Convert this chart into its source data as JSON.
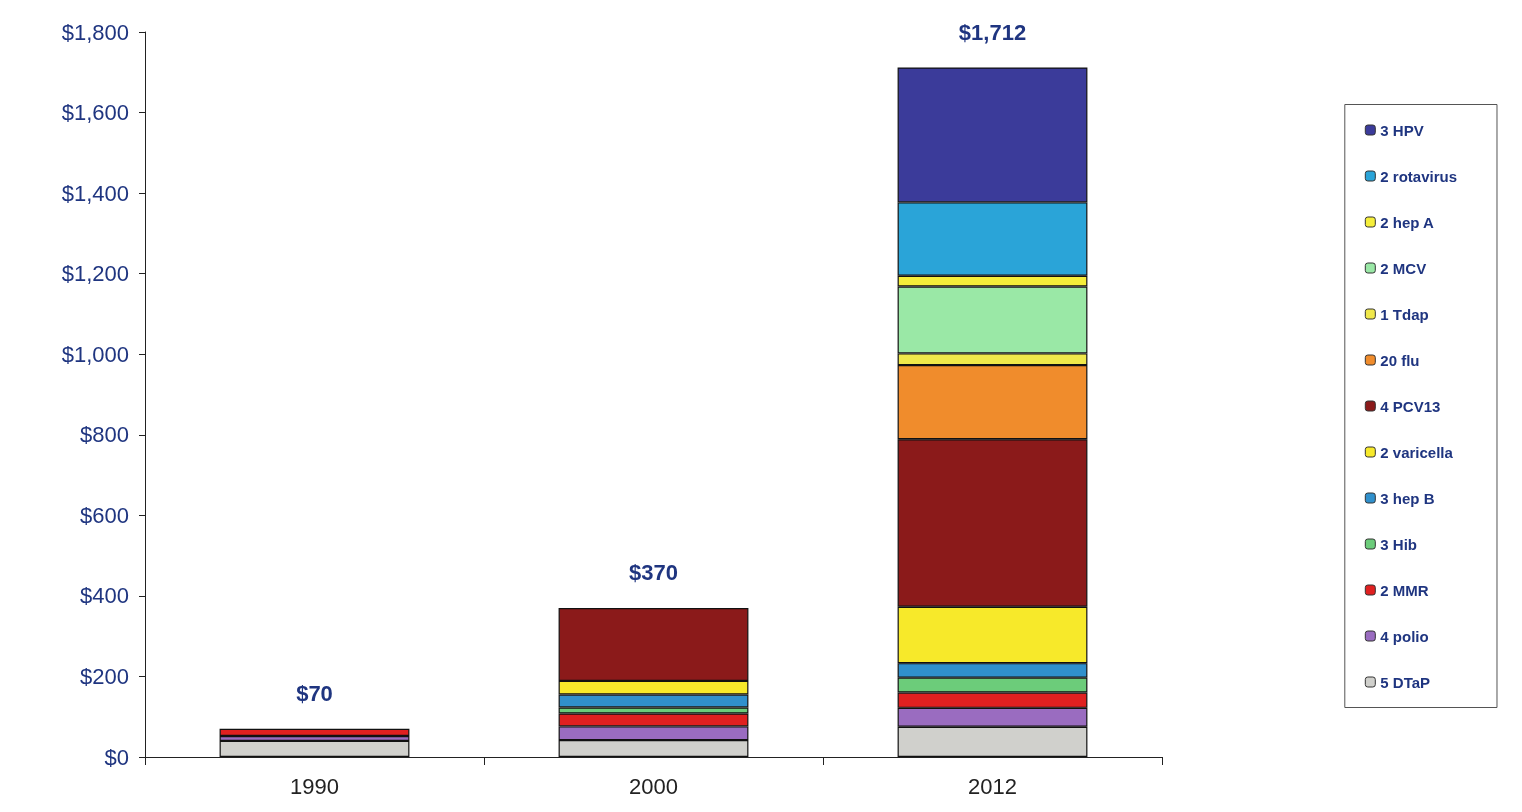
{
  "chart_data": {
    "type": "bar",
    "stacked": true,
    "categories": [
      "1990",
      "2000",
      "2012"
    ],
    "series": [
      {
        "name": "5 DTaP",
        "color": "#d0d0cc",
        "values": [
          40,
          42,
          75
        ]
      },
      {
        "name": "4 polio",
        "color": "#9a6cc0",
        "values": [
          12,
          34,
          47
        ]
      },
      {
        "name": "2 MMR",
        "color": "#e02020",
        "values": [
          18,
          32,
          38
        ]
      },
      {
        "name": "3 Hib",
        "color": "#6ccc7a",
        "values": [
          null,
          15,
          37
        ]
      },
      {
        "name": "3 hep B",
        "color": "#3090cc",
        "values": [
          null,
          32,
          36
        ]
      },
      {
        "name": "2 varicella",
        "color": "#f7e92a",
        "values": [
          null,
          34,
          140
        ]
      },
      {
        "name": "4 PCV13",
        "color": "#8b1a1a",
        "values": [
          null,
          181,
          416
        ]
      },
      {
        "name": "20 flu",
        "color": "#f08c2c",
        "values": [
          null,
          null,
          184
        ]
      },
      {
        "name": "1 Tdap",
        "color": "#f0e84a",
        "values": [
          null,
          null,
          29
        ]
      },
      {
        "name": "2 MCV",
        "color": "#9ae8a6",
        "values": [
          null,
          null,
          166
        ]
      },
      {
        "name": "2 hep A",
        "color": "#f5ee3a",
        "values": [
          null,
          null,
          27
        ]
      },
      {
        "name": "2 rotavirus",
        "color": "#2aa4d8",
        "values": [
          null,
          null,
          182
        ]
      },
      {
        "name": "3 HPV",
        "color": "#3b3b9a",
        "values": [
          null,
          null,
          335
        ]
      }
    ],
    "totals": [
      "$70",
      "$370",
      "$1,712"
    ],
    "ylim": [
      0,
      1800
    ],
    "yticks": [
      {
        "value": 0,
        "label": "$0"
      },
      {
        "value": 200,
        "label": "$200"
      },
      {
        "value": 400,
        "label": "$400"
      },
      {
        "value": 600,
        "label": "$600"
      },
      {
        "value": 800,
        "label": "$800"
      },
      {
        "value": 1000,
        "label": "$1,000"
      },
      {
        "value": 1200,
        "label": "$1,200"
      },
      {
        "value": 1400,
        "label": "$1,400"
      },
      {
        "value": 1600,
        "label": "$1,600"
      },
      {
        "value": 1800,
        "label": "$1,800"
      }
    ],
    "grid": false,
    "legend": "right"
  }
}
